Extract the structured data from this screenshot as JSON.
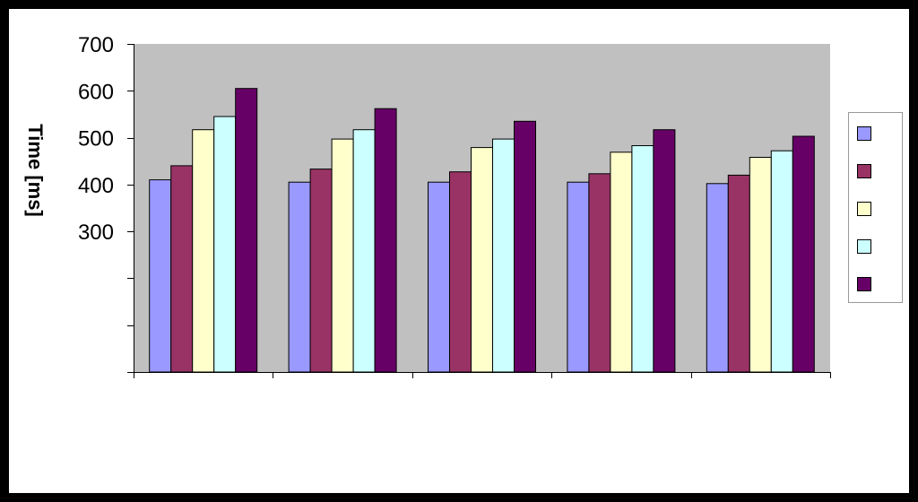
{
  "chart_data": {
    "type": "bar",
    "title": "",
    "xlabel": "",
    "ylabel": "Time [ms]",
    "ylim": [
      0,
      700
    ],
    "ytick_labels": [
      "700",
      "600",
      "500",
      "400",
      "300"
    ],
    "grid": false,
    "legend": "right",
    "plot_background": "#c0c0c0",
    "categories": [
      "",
      "",
      "",
      "",
      ""
    ],
    "series": [
      {
        "color": "#9999ff",
        "values": [
          410,
          405,
          405,
          405,
          402
        ]
      },
      {
        "color": "#993366",
        "values": [
          440,
          433,
          427,
          423,
          420
        ]
      },
      {
        "color": "#ffffcc",
        "values": [
          517,
          497,
          479,
          469,
          458
        ]
      },
      {
        "color": "#ccffff",
        "values": [
          545,
          517,
          497,
          483,
          472
        ]
      },
      {
        "color": "#660066",
        "values": [
          605,
          562,
          535,
          517,
          503
        ]
      }
    ]
  }
}
